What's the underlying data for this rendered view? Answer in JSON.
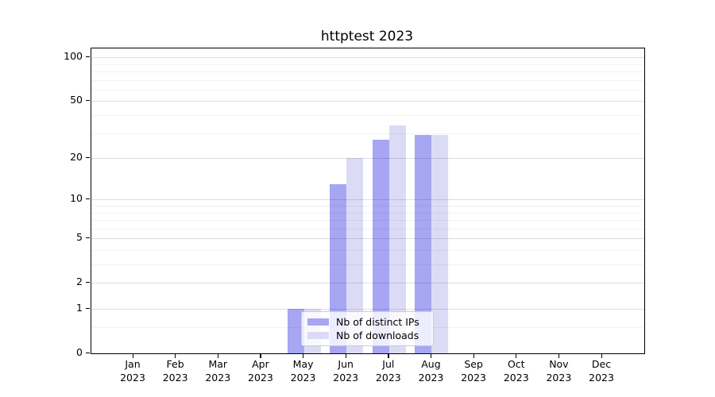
{
  "title": "httptest 2023",
  "chart_data": {
    "type": "bar",
    "title": "httptest 2023",
    "x_months": [
      "Jan",
      "Feb",
      "Mar",
      "Apr",
      "May",
      "Jun",
      "Jul",
      "Aug",
      "Sep",
      "Oct",
      "Nov",
      "Dec"
    ],
    "x_year": "2023",
    "series": [
      {
        "name": "Nb of distinct IPs",
        "color": "#a6a6f2",
        "values": [
          0,
          0,
          0,
          0,
          1,
          13,
          27,
          29,
          0,
          0,
          0,
          0
        ]
      },
      {
        "name": "Nb of downloads",
        "color": "#dbdbf6",
        "values": [
          0,
          0,
          0,
          0,
          1,
          20,
          34,
          29,
          0,
          0,
          0,
          0
        ]
      }
    ],
    "y_scale": "log10(value+1)",
    "y_major_ticks": [
      0,
      1,
      2,
      5,
      10,
      20,
      50,
      100
    ],
    "y_minor_gridlines": [
      0.5,
      3,
      4,
      6,
      7,
      8,
      9,
      30,
      40,
      60,
      70,
      80,
      90
    ],
    "ylim": [
      0,
      115
    ],
    "grid": true,
    "legend_position": "lower-center"
  }
}
